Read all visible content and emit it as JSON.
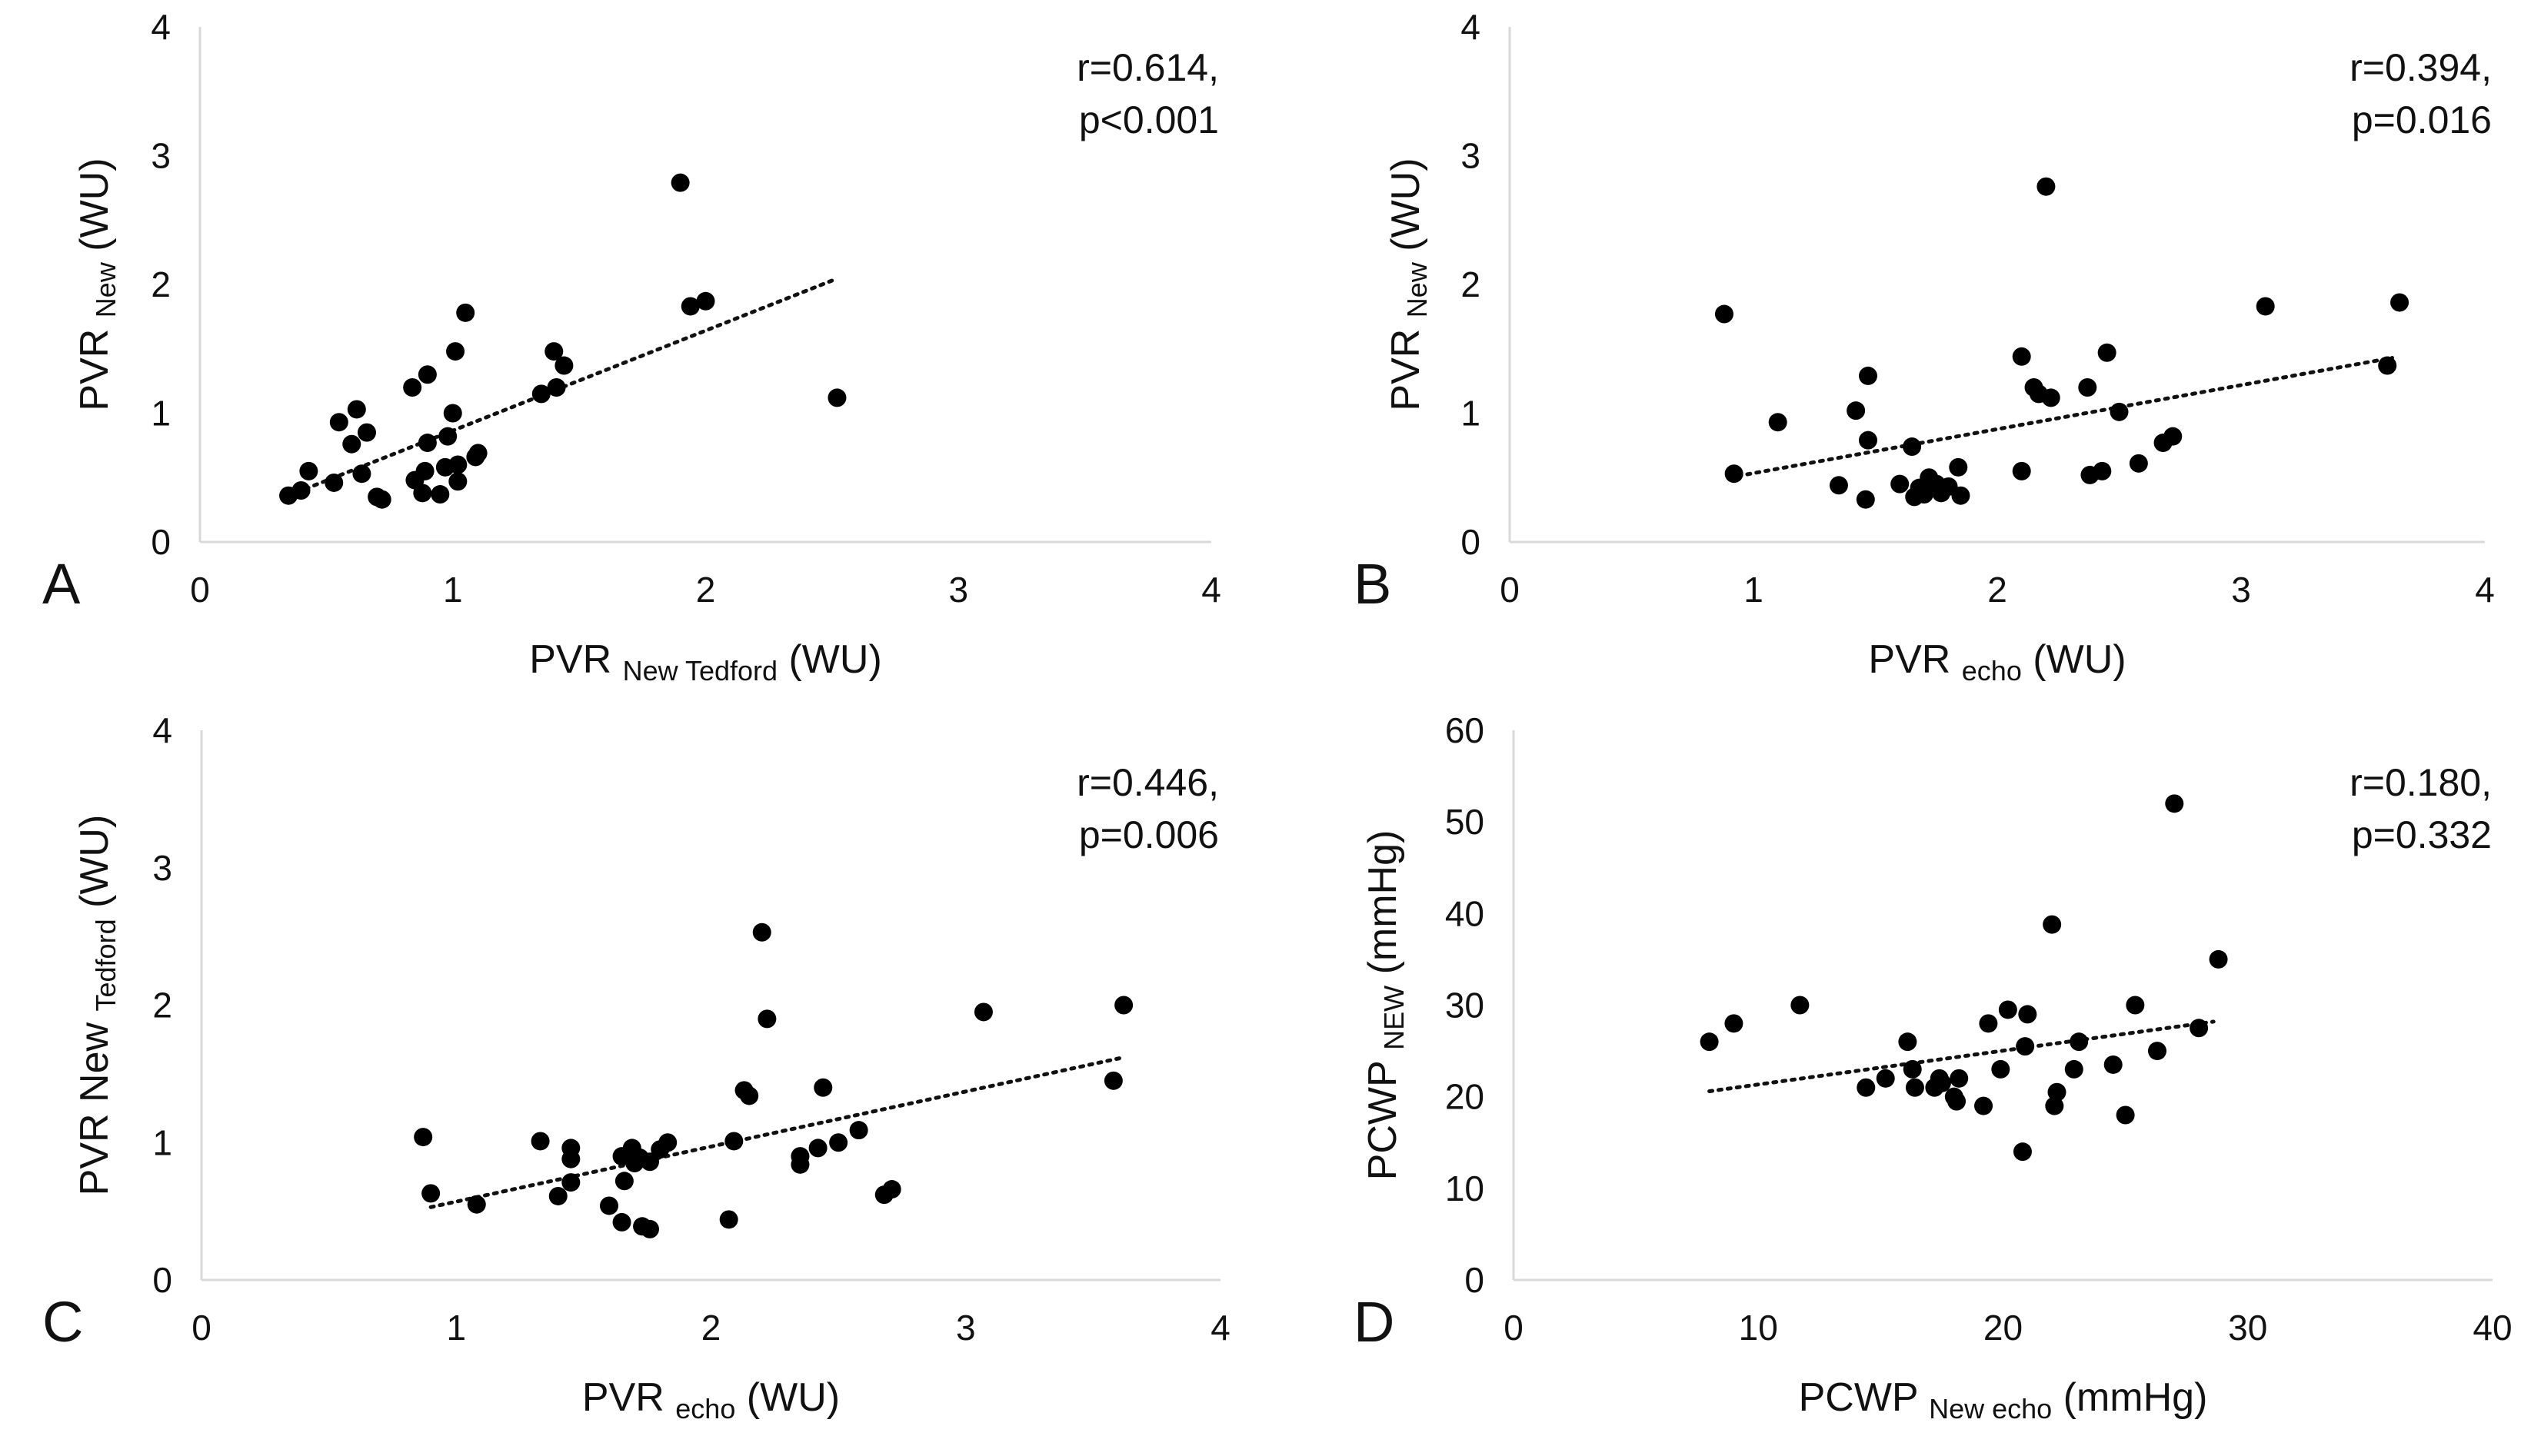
{
  "chart_data": [
    {
      "id": "A",
      "type": "scatter",
      "panel_label": "A",
      "xlabel": {
        "main": "PVR",
        "sub": "New Tedford",
        "unit": "(WU)"
      },
      "ylabel": {
        "main": "PVR",
        "sub": "New",
        "unit": "(WU)"
      },
      "xlim": [
        0,
        4
      ],
      "ylim": [
        0,
        4
      ],
      "xticks": [
        "0",
        "1",
        "2",
        "3",
        "4"
      ],
      "yticks": [
        "0",
        "1",
        "2",
        "3",
        "4"
      ],
      "stat_lines": [
        "r=0.614,",
        "p<0.001"
      ],
      "trendline": {
        "x1": 0.35,
        "y1": 0.36,
        "x2": 2.5,
        "y2": 2.03
      },
      "points": [
        [
          0.35,
          0.36
        ],
        [
          0.4,
          0.4
        ],
        [
          0.43,
          0.55
        ],
        [
          0.53,
          0.46
        ],
        [
          0.55,
          0.93
        ],
        [
          0.6,
          0.76
        ],
        [
          0.62,
          1.03
        ],
        [
          0.64,
          0.53
        ],
        [
          0.66,
          0.85
        ],
        [
          0.7,
          0.35
        ],
        [
          0.72,
          0.33
        ],
        [
          0.84,
          1.2
        ],
        [
          0.85,
          0.48
        ],
        [
          0.88,
          0.38
        ],
        [
          0.89,
          0.55
        ],
        [
          0.9,
          1.3
        ],
        [
          0.9,
          0.77
        ],
        [
          0.95,
          0.37
        ],
        [
          0.97,
          0.58
        ],
        [
          0.98,
          0.82
        ],
        [
          1.0,
          1.0
        ],
        [
          1.01,
          1.48
        ],
        [
          1.02,
          0.47
        ],
        [
          1.02,
          0.6
        ],
        [
          1.05,
          1.78
        ],
        [
          1.09,
          0.66
        ],
        [
          1.1,
          0.69
        ],
        [
          1.35,
          1.15
        ],
        [
          1.4,
          1.48
        ],
        [
          1.41,
          1.2
        ],
        [
          1.44,
          1.37
        ],
        [
          1.9,
          2.79
        ],
        [
          1.94,
          1.83
        ],
        [
          2.0,
          1.87
        ],
        [
          2.52,
          1.12
        ]
      ]
    },
    {
      "id": "B",
      "type": "scatter",
      "panel_label": "B",
      "xlabel": {
        "main": "PVR",
        "sub": "echo",
        "unit": "(WU)"
      },
      "ylabel": {
        "main": "PVR",
        "sub": "New",
        "unit": "(WU)"
      },
      "xlim": [
        0,
        4
      ],
      "ylim": [
        0,
        4
      ],
      "xticks": [
        "0",
        "1",
        "2",
        "3",
        "4"
      ],
      "yticks": [
        "0",
        "1",
        "2",
        "3",
        "4"
      ],
      "stat_lines": [
        "r=0.394,",
        "p=0.016"
      ],
      "trendline": {
        "x1": 0.9,
        "y1": 0.5,
        "x2": 3.62,
        "y2": 1.43
      },
      "points": [
        [
          0.88,
          1.77
        ],
        [
          0.92,
          0.53
        ],
        [
          1.1,
          0.93
        ],
        [
          1.35,
          0.44
        ],
        [
          1.42,
          1.02
        ],
        [
          1.46,
          0.33
        ],
        [
          1.47,
          0.79
        ],
        [
          1.47,
          1.29
        ],
        [
          1.6,
          0.45
        ],
        [
          1.65,
          0.74
        ],
        [
          1.66,
          0.35
        ],
        [
          1.68,
          0.42
        ],
        [
          1.7,
          0.37
        ],
        [
          1.72,
          0.5
        ],
        [
          1.75,
          0.45
        ],
        [
          1.77,
          0.38
        ],
        [
          1.8,
          0.43
        ],
        [
          1.84,
          0.58
        ],
        [
          1.85,
          0.36
        ],
        [
          2.1,
          0.55
        ],
        [
          2.1,
          1.44
        ],
        [
          2.15,
          1.2
        ],
        [
          2.17,
          1.15
        ],
        [
          2.2,
          2.76
        ],
        [
          2.22,
          1.12
        ],
        [
          2.37,
          1.2
        ],
        [
          2.38,
          0.52
        ],
        [
          2.43,
          0.55
        ],
        [
          2.45,
          1.47
        ],
        [
          2.5,
          1.01
        ],
        [
          2.58,
          0.61
        ],
        [
          2.68,
          0.77
        ],
        [
          2.72,
          0.82
        ],
        [
          3.1,
          1.83
        ],
        [
          3.6,
          1.37
        ],
        [
          3.65,
          1.86
        ]
      ]
    },
    {
      "id": "C",
      "type": "scatter",
      "panel_label": "C",
      "xlabel": {
        "main": "PVR",
        "sub": "echo",
        "unit": "(WU)"
      },
      "ylabel": {
        "main": "PVR New",
        "sub": "Tedford",
        "unit": "(WU)"
      },
      "xlim": [
        0,
        4
      ],
      "ylim": [
        0,
        4
      ],
      "xticks": [
        "0",
        "1",
        "2",
        "3",
        "4"
      ],
      "yticks": [
        "0",
        "1",
        "2",
        "3",
        "4"
      ],
      "stat_lines": [
        "r=0.446,",
        "p=0.006"
      ],
      "trendline": {
        "x1": 0.9,
        "y1": 0.53,
        "x2": 3.62,
        "y2": 1.62
      },
      "points": [
        [
          0.87,
          1.04
        ],
        [
          0.9,
          0.63
        ],
        [
          1.08,
          0.55
        ],
        [
          1.33,
          1.01
        ],
        [
          1.4,
          0.61
        ],
        [
          1.45,
          0.96
        ],
        [
          1.45,
          0.88
        ],
        [
          1.45,
          0.71
        ],
        [
          1.6,
          0.54
        ],
        [
          1.65,
          0.42
        ],
        [
          1.65,
          0.9
        ],
        [
          1.66,
          0.72
        ],
        [
          1.69,
          0.96
        ],
        [
          1.7,
          0.85
        ],
        [
          1.72,
          0.89
        ],
        [
          1.73,
          0.39
        ],
        [
          1.76,
          0.37
        ],
        [
          1.76,
          0.86
        ],
        [
          1.8,
          0.95
        ],
        [
          1.83,
          1.0
        ],
        [
          2.07,
          0.44
        ],
        [
          2.09,
          1.01
        ],
        [
          2.13,
          1.38
        ],
        [
          2.15,
          1.34
        ],
        [
          2.2,
          2.53
        ],
        [
          2.22,
          1.9
        ],
        [
          2.35,
          0.84
        ],
        [
          2.35,
          0.9
        ],
        [
          2.42,
          0.96
        ],
        [
          2.44,
          1.4
        ],
        [
          2.5,
          1.0
        ],
        [
          2.58,
          1.09
        ],
        [
          2.68,
          0.62
        ],
        [
          2.71,
          0.66
        ],
        [
          3.07,
          1.95
        ],
        [
          3.58,
          1.45
        ],
        [
          3.62,
          2.0
        ]
      ]
    },
    {
      "id": "D",
      "type": "scatter",
      "panel_label": "D",
      "xlabel": {
        "main": "PCWP",
        "sub": "New echo",
        "unit": "(mmHg)"
      },
      "ylabel": {
        "main": "PCWP",
        "sub": "NEW",
        "unit": "(mmHg)"
      },
      "xlim": [
        0,
        40
      ],
      "ylim": [
        0,
        60
      ],
      "xticks": [
        "0",
        "10",
        "20",
        "30",
        "40"
      ],
      "yticks": [
        "0",
        "10",
        "20",
        "30",
        "40",
        "50",
        "60"
      ],
      "stat_lines": [
        "r=0.180,",
        "p=0.332"
      ],
      "trendline": {
        "x1": 8,
        "y1": 20.6,
        "x2": 28.6,
        "y2": 28.2
      },
      "points": [
        [
          8.0,
          26.0
        ],
        [
          9.0,
          28.0
        ],
        [
          11.7,
          30.0
        ],
        [
          14.4,
          21.0
        ],
        [
          15.2,
          22.0
        ],
        [
          16.1,
          26.0
        ],
        [
          16.3,
          23.0
        ],
        [
          16.4,
          21.0
        ],
        [
          17.2,
          21.0
        ],
        [
          17.4,
          22.0
        ],
        [
          17.5,
          21.5
        ],
        [
          18.0,
          20.0
        ],
        [
          18.1,
          19.5
        ],
        [
          18.2,
          22.0
        ],
        [
          19.2,
          19.0
        ],
        [
          19.4,
          28.0
        ],
        [
          19.9,
          23.0
        ],
        [
          20.2,
          29.5
        ],
        [
          20.8,
          14.0
        ],
        [
          20.9,
          25.5
        ],
        [
          21.0,
          29.0
        ],
        [
          22.0,
          38.8
        ],
        [
          22.1,
          19.0
        ],
        [
          22.2,
          20.5
        ],
        [
          22.9,
          23.0
        ],
        [
          23.1,
          26.0
        ],
        [
          24.5,
          23.5
        ],
        [
          25.0,
          18.0
        ],
        [
          25.4,
          30.0
        ],
        [
          26.3,
          25.0
        ],
        [
          27.0,
          52.0
        ],
        [
          28.0,
          27.5
        ],
        [
          28.8,
          35.0
        ]
      ]
    }
  ]
}
